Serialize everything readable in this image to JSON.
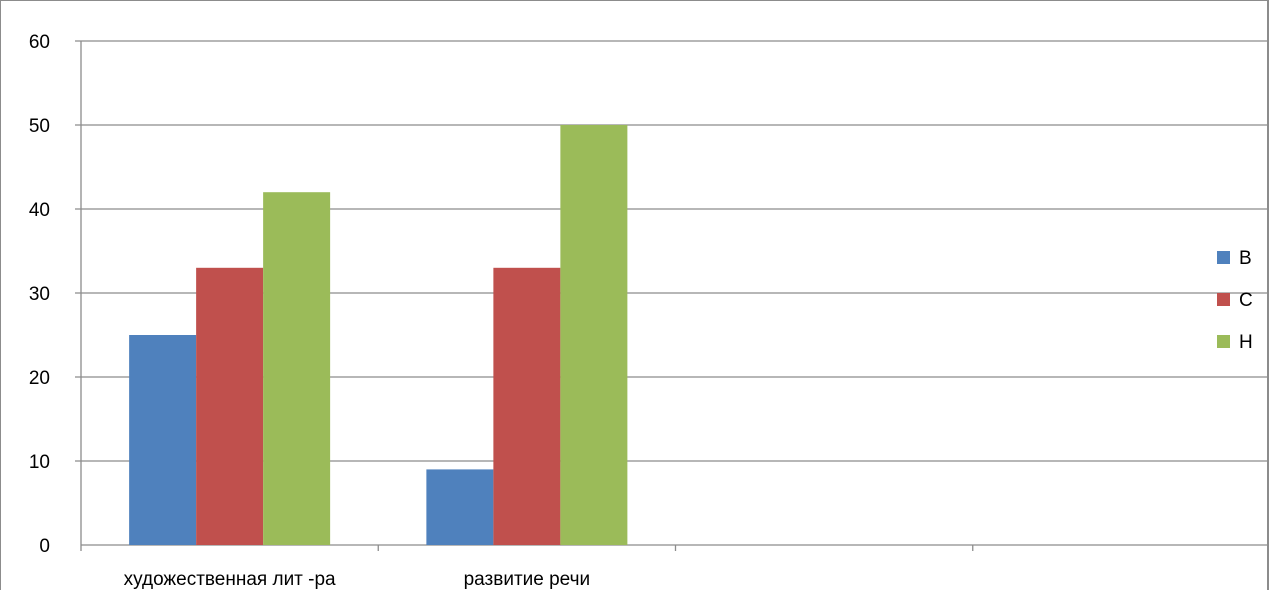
{
  "chart_data": {
    "type": "bar",
    "title": "",
    "xlabel": "",
    "ylabel": "",
    "ylim": [
      0,
      60
    ],
    "ytick_step": 10,
    "grid": "horizontal",
    "legend_position": "right",
    "categories": [
      "художественная лит -ра",
      "развитие речи",
      "",
      ""
    ],
    "series": [
      {
        "name": "В",
        "color": "#4f81bd",
        "values": [
          25,
          9,
          null,
          null
        ]
      },
      {
        "name": "С",
        "color": "#c0504d",
        "values": [
          33,
          33,
          null,
          null
        ]
      },
      {
        "name": "Н",
        "color": "#9bbb59",
        "values": [
          42,
          50,
          null,
          null
        ]
      }
    ]
  }
}
